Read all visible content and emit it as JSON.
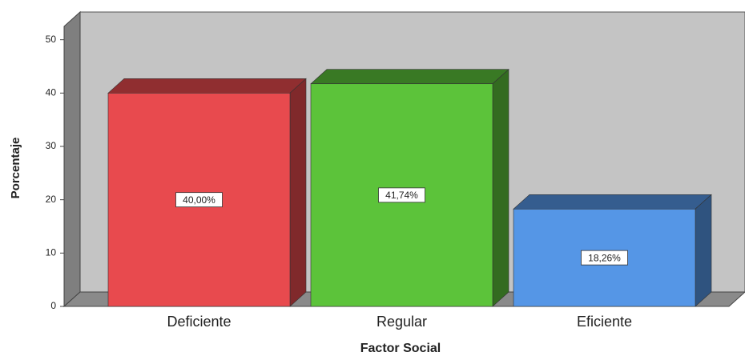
{
  "chart_data": {
    "type": "bar3d",
    "x_label": "Factor Social",
    "y_label": "Porcentaje",
    "categories": [
      "Deficiente",
      "Regular",
      "Eficiente"
    ],
    "values": [
      40,
      41.74,
      18.26
    ],
    "value_labels": [
      "40,00%",
      "41,74%",
      "18,26%"
    ],
    "colors": [
      "#e84a4e",
      "#5cc33a",
      "#5596e6"
    ],
    "ylim": [
      0,
      52.5
    ],
    "yticks": [
      0,
      10,
      20,
      30,
      40,
      50
    ]
  }
}
